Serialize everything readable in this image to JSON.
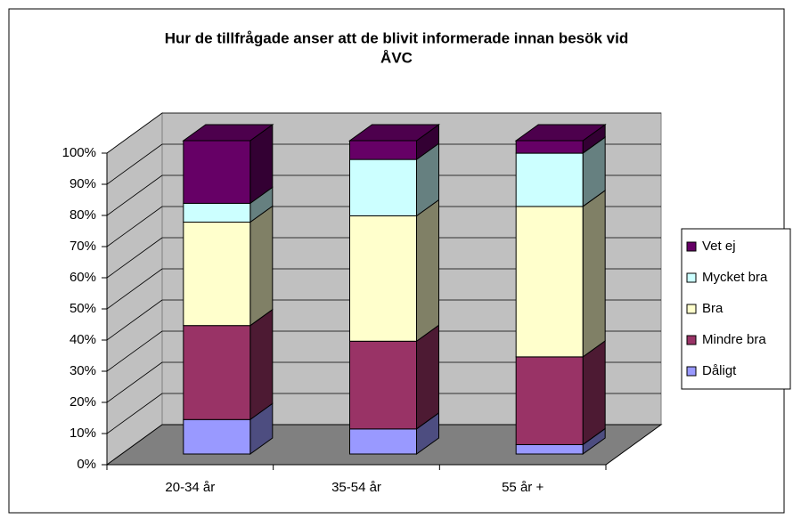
{
  "chart_data": {
    "type": "bar3d-stacked-percent",
    "title": [
      "Hur de tillfrågade anser att de blivit informerade innan besök vid",
      "ÅVC"
    ],
    "categories": [
      "20-34 år",
      "35-54 år",
      "55 år +"
    ],
    "series": [
      {
        "name": "Dåligt",
        "color": "#9999ff",
        "values": [
          11,
          8,
          3
        ]
      },
      {
        "name": "Mindre bra",
        "color": "#993366",
        "values": [
          30,
          28,
          28
        ]
      },
      {
        "name": "Bra",
        "color": "#ffffcc",
        "values": [
          33,
          40,
          48
        ]
      },
      {
        "name": "Mycket bra",
        "color": "#ccffff",
        "values": [
          6,
          18,
          17
        ]
      },
      {
        "name": "Vet ej",
        "color": "#660066",
        "values": [
          20,
          6,
          4
        ]
      }
    ],
    "ylim": [
      0,
      100
    ],
    "yticks": [
      {
        "value": 0,
        "label": "0%"
      },
      {
        "value": 10,
        "label": "10%"
      },
      {
        "value": 20,
        "label": "20%"
      },
      {
        "value": 30,
        "label": "30%"
      },
      {
        "value": 40,
        "label": "40%"
      },
      {
        "value": 50,
        "label": "50%"
      },
      {
        "value": 60,
        "label": "60%"
      },
      {
        "value": 70,
        "label": "70%"
      },
      {
        "value": 80,
        "label": "80%"
      },
      {
        "value": 90,
        "label": "90%"
      },
      {
        "value": 100,
        "label": "100%"
      }
    ],
    "grid": true,
    "legend": "right"
  }
}
